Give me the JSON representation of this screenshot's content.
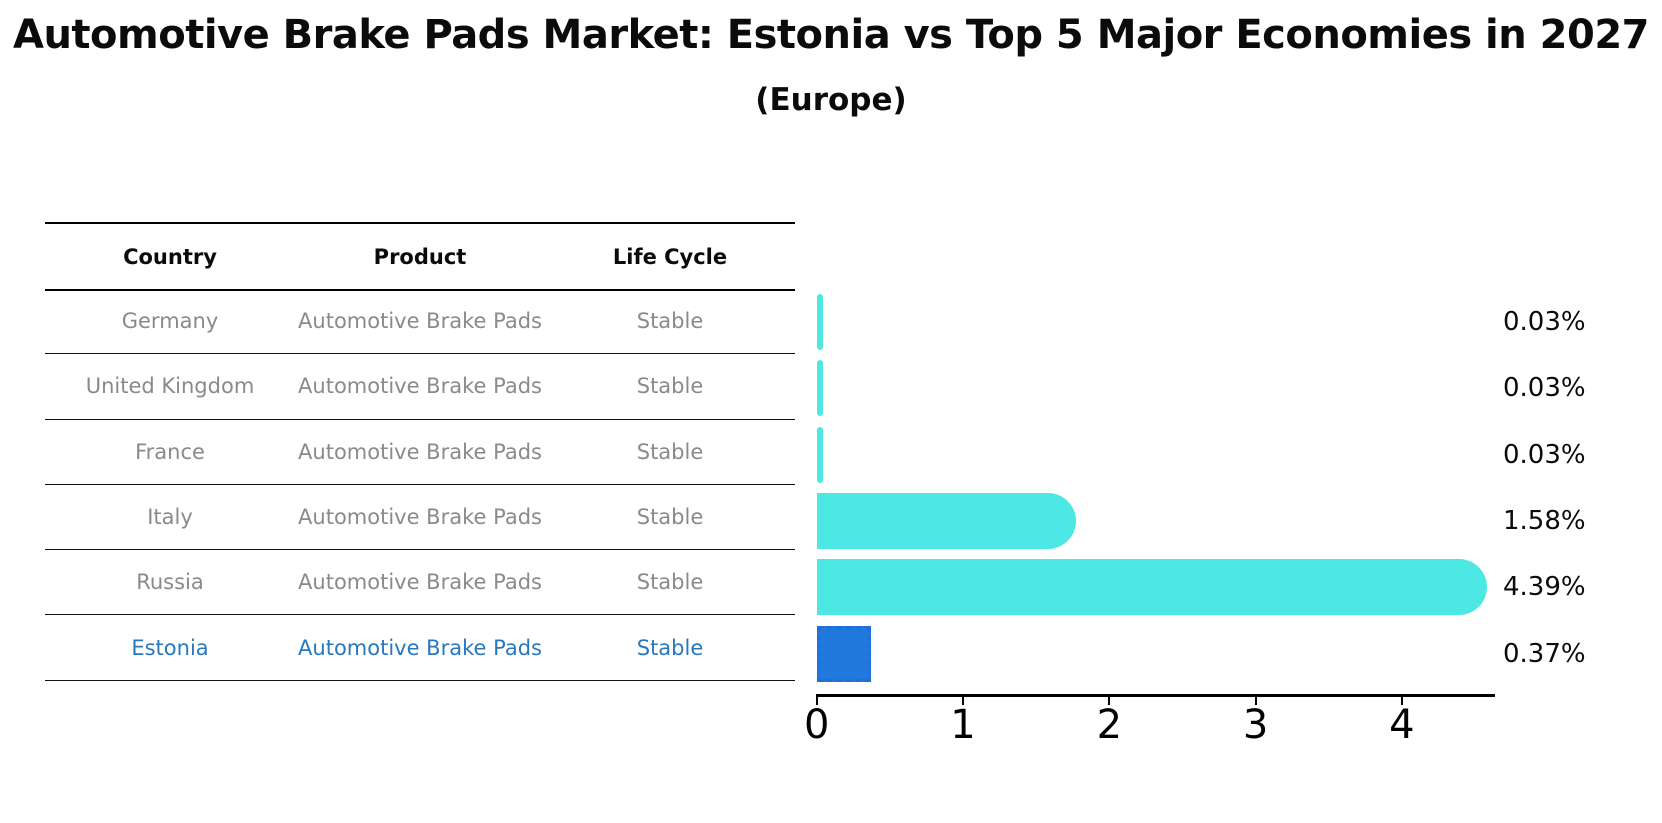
{
  "title": "Automotive Brake Pads Market: Estonia vs Top 5 Major Economies in 2027",
  "subtitle": "(Europe)",
  "table": {
    "headers": [
      "Country",
      "Product",
      "Life Cycle"
    ],
    "rows": [
      {
        "country": "Germany",
        "product": "Automotive Brake Pads",
        "life_cycle": "Stable",
        "highlight": false
      },
      {
        "country": "United Kingdom",
        "product": "Automotive Brake Pads",
        "life_cycle": "Stable",
        "highlight": false
      },
      {
        "country": "France",
        "product": "Automotive Brake Pads",
        "life_cycle": "Stable",
        "highlight": false
      },
      {
        "country": "Italy",
        "product": "Automotive Brake Pads",
        "life_cycle": "Stable",
        "highlight": false
      },
      {
        "country": "Russia",
        "product": "Automotive Brake Pads",
        "life_cycle": "Stable",
        "highlight": false
      },
      {
        "country": "Estonia",
        "product": "Automotive Brake Pads",
        "life_cycle": "Stable",
        "highlight": true
      }
    ]
  },
  "chart_data": {
    "type": "bar",
    "orientation": "horizontal",
    "title": "Automotive Brake Pads Market: Estonia vs Top 5 Major Economies in 2027",
    "subtitle": "(Europe)",
    "categories": [
      "Germany",
      "United Kingdom",
      "France",
      "Italy",
      "Russia",
      "Estonia"
    ],
    "values": [
      0.03,
      0.03,
      0.03,
      1.58,
      4.39,
      0.37
    ],
    "value_labels": [
      "0.03%",
      "0.03%",
      "0.03%",
      "1.58%",
      "4.39%",
      "0.37%"
    ],
    "xlabel": "",
    "ylabel": "",
    "xlim": [
      0,
      4.64
    ],
    "xticks": [
      "0",
      "1",
      "2",
      "3",
      "4"
    ],
    "grid": false,
    "legend": false,
    "highlight_category": "Estonia",
    "bar_color": "#4de8e4",
    "highlight_color": "#2279dd"
  },
  "colors": {
    "bar": "#4de8e4",
    "highlight_fill": "#2279dd",
    "highlight_border": "#1f6fd6",
    "cell_text": "#8a8a8a",
    "highlight_text": "#2878be",
    "axis": "#000000",
    "background": "#ffffff"
  }
}
